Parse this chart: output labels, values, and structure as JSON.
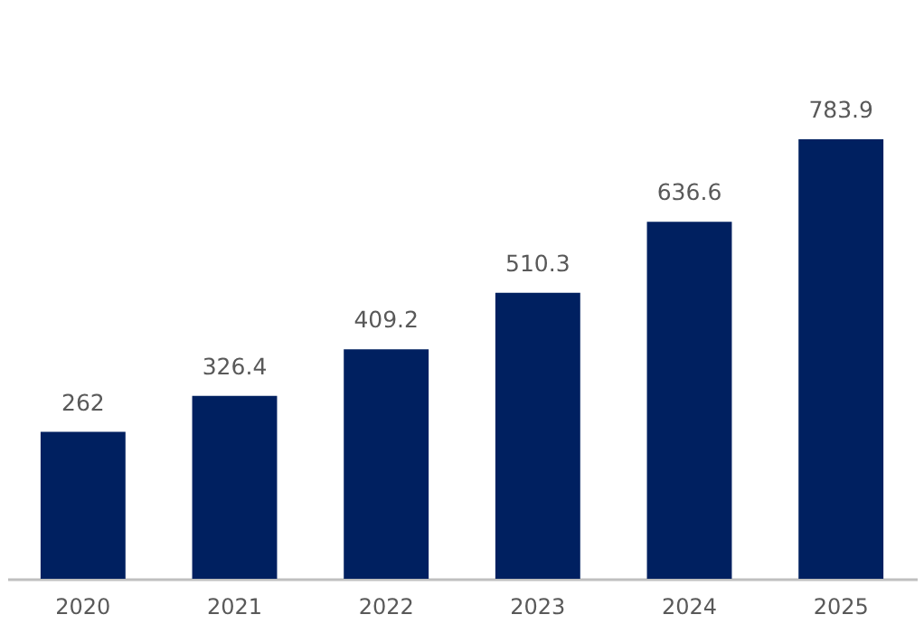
{
  "chart_data": {
    "type": "bar",
    "categories": [
      "2020",
      "2021",
      "2022",
      "2023",
      "2024",
      "2025"
    ],
    "values": [
      262,
      326.4,
      409.2,
      510.3,
      636.6,
      783.9
    ],
    "color": "#002060",
    "data_labels": true,
    "grid": false
  }
}
